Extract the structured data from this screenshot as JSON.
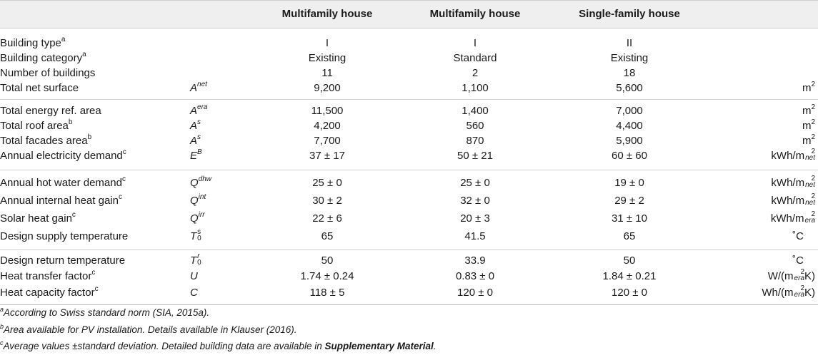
{
  "header": {
    "col1": "Multifamily house",
    "col2": "Multifamily house",
    "col3": "Single-family house"
  },
  "rows": {
    "building_type": {
      "label": "Building type",
      "note": "a",
      "sym": "",
      "c1": "I",
      "c2": "I",
      "c3": "II",
      "unit": ""
    },
    "building_category": {
      "label": "Building category",
      "note": "a",
      "sym": "",
      "c1": "Existing",
      "c2": "Standard",
      "c3": "Existing",
      "unit": ""
    },
    "number_of_buildings": {
      "label": "Number of buildings",
      "note": "",
      "sym": "",
      "c1": "11",
      "c2": "2",
      "c3": "18",
      "unit": ""
    },
    "total_net_surface": {
      "label": "Total net surface",
      "note": "",
      "sym": "A",
      "sym_sup": "net",
      "c1": "9,200",
      "c2": "1,100",
      "c3": "5,600",
      "unit": "m",
      "unit_sup": "2"
    },
    "total_energy_ref_area": {
      "label": "Total energy ref. area",
      "note": "",
      "sym": "A",
      "sym_sup": "era",
      "c1": "11,500",
      "c2": "1,400",
      "c3": "7,000",
      "unit": "m",
      "unit_sup": "2"
    },
    "total_roof_area": {
      "label": "Total roof area",
      "note": "b",
      "sym": "A",
      "sym_sup": "s",
      "c1": "4,200",
      "c2": "560",
      "c3": "4,400",
      "unit": "m",
      "unit_sup": "2"
    },
    "total_facades_area": {
      "label": "Total facades area",
      "note": "b",
      "sym": "A",
      "sym_sup": "s",
      "c1": "7,700",
      "c2": "870",
      "c3": "5,900",
      "unit": "m",
      "unit_sup": "2"
    },
    "annual_electricity_demand": {
      "label": "Annual electricity demand",
      "note": "c",
      "sym": "E",
      "sym_sup": "B",
      "c1": "37 ± 17",
      "c2": "50 ± 21",
      "c3": "60 ± 60",
      "unit": "kWh/m",
      "unit_sup": "2",
      "unit_sub": "net"
    },
    "annual_hot_water_demand": {
      "label": "Annual hot water demand",
      "note": "c",
      "sym": "Q",
      "sym_sup": "dhw",
      "c1": "25 ± 0",
      "c2": "25 ± 0",
      "c3": "19 ± 0",
      "unit": "kWh/m",
      "unit_sup": "2",
      "unit_sub": "net"
    },
    "annual_internal_heat_gain": {
      "label": "Annual internal heat gain",
      "note": "c",
      "sym": "Q",
      "sym_sup": "int",
      "c1": "30 ± 2",
      "c2": "32 ± 0",
      "c3": "29 ± 2",
      "unit": "kWh/m",
      "unit_sup": "2",
      "unit_sub": "net"
    },
    "solar_heat_gain": {
      "label": "Solar heat gain",
      "note": "c",
      "sym": "Q",
      "sym_sup": "irr",
      "c1": "22 ± 6",
      "c2": "20 ± 3",
      "c3": "31 ± 10",
      "unit": "kWh/m",
      "unit_sup": "2",
      "unit_sub": "era"
    },
    "design_supply_temperature": {
      "label": "Design supply temperature",
      "note": "",
      "sym": "T",
      "sym_sup": "s",
      "sym_sub": "0",
      "c1": "65",
      "c2": "41.5",
      "c3": "65",
      "unit": "˚C"
    },
    "design_return_temperature": {
      "label": "Design return temperature",
      "note": "",
      "sym": "T",
      "sym_sup": "r",
      "sym_sub": "0",
      "c1": "50",
      "c2": "33.9",
      "c3": "50",
      "unit": "˚C"
    },
    "heat_transfer_factor": {
      "label": "Heat transfer factor",
      "note": "c",
      "sym": "U",
      "c1": "1.74 ± 0.24",
      "c2": "0.83 ± 0",
      "c3": "1.84 ± 0.21",
      "unit_pre": "W/(m",
      "unit_sup": "2",
      "unit_sub": "era",
      "unit_post": "K)"
    },
    "heat_capacity_factor": {
      "label": "Heat capacity factor",
      "note": "c",
      "sym": "C",
      "c1": "118 ± 5",
      "c2": "120 ± 0",
      "c3": "120 ± 0",
      "unit_pre": "Wh/(m",
      "unit_sup": "2",
      "unit_sub": "era",
      "unit_post": "K)"
    }
  },
  "footnotes": {
    "a_mark": "a",
    "a_text": "According to Swiss standard norm (SIA, 2015a).",
    "b_mark": "b",
    "b_text": "Area available for PV installation. Details available in Klauser (2016).",
    "c_mark": "c",
    "c_text": "Average values ±standard deviation. Detailed building data are available in ",
    "c_bold": "Supplementary Material",
    "c_end": "."
  }
}
